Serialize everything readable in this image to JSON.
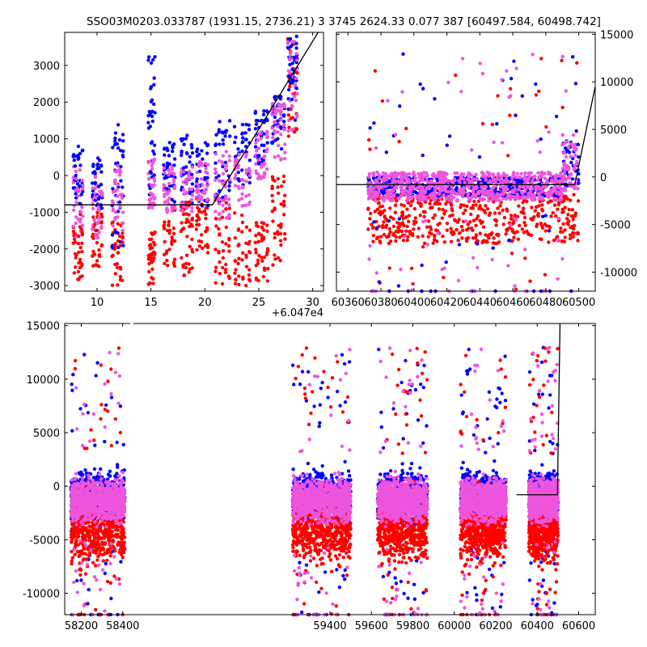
{
  "figure": {
    "title": "SSO03M0203.033787 (1931.15, 2736.21)   3 3745 2624.33 0.077 387 [60497.584, 60498.742]"
  },
  "colors": {
    "blue": "#0000ff",
    "red": "#ff0000",
    "magenta": "#ee55dd",
    "model": "#000000"
  },
  "chart_data": [
    {
      "id": "zoom",
      "type": "scatter",
      "xlim": [
        7,
        31
      ],
      "ylim": [
        -3150,
        3900
      ],
      "x_offset_label": "+6.047e4",
      "xticks": [
        10,
        15,
        20,
        25,
        30
      ],
      "yticks": [
        -3000,
        -2000,
        -1000,
        0,
        1000,
        2000,
        3000
      ],
      "ytick_side": "left",
      "model_line": [
        [
          7,
          -800
        ],
        [
          20.7,
          -800
        ],
        [
          30.5,
          3900
        ]
      ],
      "clusters": [
        {
          "x": [
            7.8,
            8.8
          ],
          "blue": [
            -1000,
            800
          ],
          "magenta": [
            -1700,
            300
          ],
          "red": [
            -3000,
            -1000
          ]
        },
        {
          "x": [
            9.6,
            10.6
          ],
          "blue": [
            -900,
            500
          ],
          "magenta": [
            -1800,
            0
          ],
          "red": [
            -2500,
            -1000
          ]
        },
        {
          "x": [
            11.4,
            12.6
          ],
          "blue": [
            -2000,
            1500
          ],
          "magenta": [
            -1500,
            300
          ],
          "red": [
            -3000,
            -1200
          ]
        },
        {
          "x": [
            14.8,
            15.4
          ],
          "blue": [
            -800,
            3500
          ],
          "magenta": [
            -900,
            500
          ],
          "red": [
            -3000,
            -1500
          ]
        },
        {
          "x": [
            16.2,
            17.4
          ],
          "blue": [
            -800,
            1000
          ],
          "magenta": [
            -1000,
            300
          ],
          "red": [
            -2500,
            -800
          ]
        },
        {
          "x": [
            17.8,
            19.0
          ],
          "blue": [
            -800,
            1100
          ],
          "magenta": [
            -1000,
            300
          ],
          "red": [
            -2800,
            -700
          ]
        },
        {
          "x": [
            19.2,
            20.5
          ],
          "blue": [
            -900,
            900
          ],
          "magenta": [
            -800,
            400
          ],
          "red": [
            -2200,
            -600
          ]
        },
        {
          "x": [
            21.0,
            22.5
          ],
          "blue": [
            -800,
            1500
          ],
          "magenta": [
            -1200,
            700
          ],
          "red": [
            -3000,
            -500
          ]
        },
        {
          "x": [
            22.8,
            24.4
          ],
          "blue": [
            -300,
            1400
          ],
          "magenta": [
            -900,
            600
          ],
          "red": [
            -3000,
            -1000
          ]
        },
        {
          "x": [
            24.7,
            26.0
          ],
          "blue": [
            300,
            1800
          ],
          "magenta": [
            -200,
            1200
          ],
          "red": [
            -3000,
            -1200
          ]
        },
        {
          "x": [
            26.2,
            27.6
          ],
          "blue": [
            700,
            2300
          ],
          "magenta": [
            400,
            2000
          ],
          "red": [
            -2500,
            0
          ]
        },
        {
          "x": [
            27.7,
            28.7
          ],
          "blue": [
            1500,
            3800
          ],
          "magenta": [
            1200,
            3700
          ],
          "red": [
            1000,
            3800
          ]
        }
      ]
    },
    {
      "id": "medium",
      "type": "scatter",
      "xlim": [
        60353,
        60510
      ],
      "ylim": [
        -12000,
        15200
      ],
      "xticks": [
        60360,
        60380,
        60400,
        60420,
        60440,
        60460,
        60480,
        60500
      ],
      "yticks": [
        -10000,
        -5000,
        0,
        5000,
        10000,
        15000
      ],
      "ytick_side": "right",
      "model_line": [
        [
          60353,
          -800
        ],
        [
          60497.6,
          -800
        ],
        [
          60510,
          9500
        ]
      ],
      "points": {
        "blue": {
          "xrange": [
            60372,
            60500
          ],
          "core": [
            -2000,
            0
          ],
          "outliers": 55
        },
        "magenta": {
          "xrange": [
            60372,
            60500
          ],
          "core": [
            -2500,
            500
          ],
          "outliers": 60
        },
        "red": {
          "xrange": [
            60372,
            60500
          ],
          "core": [
            -7000,
            -1500
          ],
          "outliers": 35
        }
      }
    },
    {
      "id": "overview",
      "type": "scatter",
      "xlim": [
        58120,
        60680
      ],
      "ylim": [
        -12000,
        15200
      ],
      "xticks": [
        58200,
        58400,
        59400,
        59600,
        59800,
        60000,
        60200,
        60400,
        60600
      ],
      "yticks": [
        -10000,
        -5000,
        0,
        5000,
        10000,
        15000
      ],
      "ytick_side": "left",
      "axis_break_x": [
        58420,
        59170
      ],
      "model_line": [
        [
          60300,
          -800
        ],
        [
          60497.6,
          -800
        ],
        [
          60510,
          15200
        ]
      ],
      "clusters": [
        {
          "x": [
            58150,
            58410
          ]
        },
        {
          "x": [
            59220,
            59500
          ]
        },
        {
          "x": [
            59630,
            59870
          ]
        },
        {
          "x": [
            60030,
            60250
          ]
        },
        {
          "x": [
            60360,
            60500
          ]
        }
      ]
    }
  ]
}
